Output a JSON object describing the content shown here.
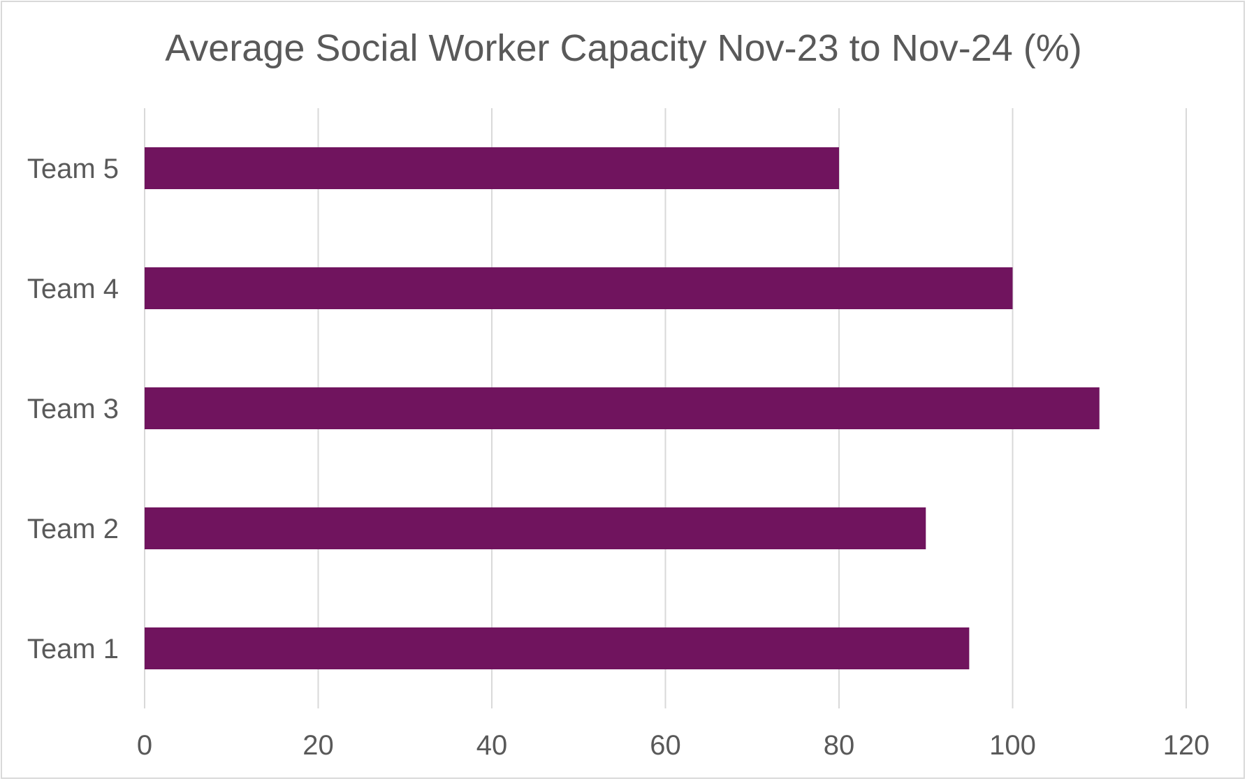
{
  "chart_data": {
    "type": "bar",
    "orientation": "horizontal",
    "title": "Average Social Worker Capacity Nov-23 to Nov-24 (%)",
    "xlabel": "",
    "ylabel": "",
    "categories": [
      "Team 1",
      "Team 2",
      "Team 3",
      "Team 4",
      "Team 5"
    ],
    "values": [
      95,
      90,
      110,
      100,
      80
    ],
    "xlim": [
      0,
      120
    ],
    "x_ticks": [
      "0",
      "20",
      "40",
      "60",
      "80",
      "100",
      "120"
    ],
    "grid": "vertical",
    "legend": "none",
    "bar_color": "#70145e",
    "gridline_color": "#d9d9d9",
    "text_color": "#595959"
  }
}
